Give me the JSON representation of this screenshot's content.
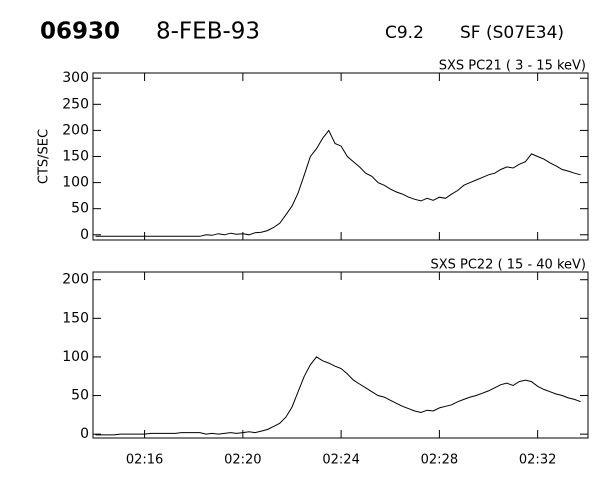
{
  "header": {
    "id": "06930",
    "date": "8-FEB-93",
    "class": "C9.2",
    "location": "SF (S07E34)"
  },
  "chart_data": [
    {
      "type": "line",
      "title": "SXS PC21  ( 3 - 15 keV)",
      "ylabel": "CTS/SEC",
      "color": "#000000",
      "x": [
        14.0,
        14.25,
        14.5,
        14.75,
        15.0,
        15.25,
        15.5,
        15.75,
        16.0,
        16.25,
        16.5,
        16.75,
        17.0,
        17.25,
        17.5,
        17.75,
        18.0,
        18.25,
        18.5,
        18.75,
        19.0,
        19.25,
        19.5,
        19.75,
        20.0,
        20.25,
        20.5,
        20.75,
        21.0,
        21.25,
        21.5,
        21.75,
        22.0,
        22.25,
        22.5,
        22.75,
        23.0,
        23.25,
        23.5,
        23.75,
        24.0,
        24.25,
        24.5,
        24.75,
        25.0,
        25.25,
        25.5,
        25.75,
        26.0,
        26.25,
        26.5,
        26.75,
        27.0,
        27.25,
        27.5,
        27.75,
        28.0,
        28.25,
        28.5,
        28.75,
        29.0,
        29.25,
        29.5,
        29.75,
        30.0,
        30.25,
        30.5,
        30.75,
        31.0,
        31.25,
        31.5,
        31.75,
        32.0,
        32.25,
        32.5,
        32.75,
        33.0,
        33.25,
        33.5,
        33.75
      ],
      "values": [
        -3,
        -3,
        -3,
        -3,
        -3,
        -3,
        -3,
        -3,
        -3,
        -3,
        -3,
        -3,
        -3,
        -3,
        -3,
        -3,
        -3,
        -3,
        0,
        -1,
        2,
        0,
        3,
        1,
        2,
        0,
        4,
        5,
        8,
        14,
        22,
        38,
        55,
        80,
        115,
        150,
        165,
        185,
        200,
        175,
        170,
        150,
        140,
        130,
        118,
        112,
        100,
        95,
        88,
        82,
        78,
        72,
        68,
        65,
        70,
        66,
        72,
        70,
        78,
        85,
        95,
        100,
        105,
        110,
        115,
        118,
        125,
        130,
        128,
        135,
        140,
        155,
        150,
        145,
        138,
        132,
        125,
        122,
        118,
        115
      ],
      "xlim": [
        13.9,
        34.05
      ],
      "ylim": [
        -10,
        310
      ],
      "yticks": [
        0,
        50,
        100,
        150,
        200,
        250,
        300
      ]
    },
    {
      "type": "line",
      "title": "SXS PC22  ( 15 - 40 keV)",
      "color": "#000000",
      "x": [
        14.0,
        14.25,
        14.5,
        14.75,
        15.0,
        15.25,
        15.5,
        15.75,
        16.0,
        16.25,
        16.5,
        16.75,
        17.0,
        17.25,
        17.5,
        17.75,
        18.0,
        18.25,
        18.5,
        18.75,
        19.0,
        19.25,
        19.5,
        19.75,
        20.0,
        20.25,
        20.5,
        20.75,
        21.0,
        21.25,
        21.5,
        21.75,
        22.0,
        22.25,
        22.5,
        22.75,
        23.0,
        23.25,
        23.5,
        23.75,
        24.0,
        24.25,
        24.5,
        24.75,
        25.0,
        25.25,
        25.5,
        25.75,
        26.0,
        26.25,
        26.5,
        26.75,
        27.0,
        27.25,
        27.5,
        27.75,
        28.0,
        28.25,
        28.5,
        28.75,
        29.0,
        29.25,
        29.5,
        29.75,
        30.0,
        30.25,
        30.5,
        30.75,
        31.0,
        31.25,
        31.5,
        31.75,
        32.0,
        32.25,
        32.5,
        32.75,
        33.0,
        33.25,
        33.5,
        33.75
      ],
      "values": [
        -1,
        -1,
        -1,
        -1,
        0,
        0,
        0,
        0,
        0,
        1,
        1,
        1,
        1,
        1,
        2,
        2,
        2,
        2,
        0,
        1,
        0,
        1,
        2,
        1,
        2,
        3,
        2,
        4,
        6,
        10,
        14,
        22,
        35,
        55,
        75,
        90,
        100,
        95,
        92,
        88,
        85,
        78,
        70,
        65,
        60,
        55,
        50,
        48,
        44,
        40,
        36,
        33,
        30,
        28,
        31,
        30,
        34,
        36,
        38,
        42,
        45,
        48,
        50,
        53,
        56,
        60,
        64,
        66,
        63,
        68,
        70,
        68,
        62,
        58,
        55,
        52,
        50,
        47,
        45,
        42
      ],
      "xlim": [
        13.9,
        34.05
      ],
      "ylim": [
        -5,
        210
      ],
      "yticks": [
        0,
        50,
        100,
        150,
        200
      ],
      "xticks": [
        {
          "value": 16,
          "label": "02:16"
        },
        {
          "value": 20,
          "label": "02:20"
        },
        {
          "value": 24,
          "label": "02:24"
        },
        {
          "value": 28,
          "label": "02:28"
        },
        {
          "value": 32,
          "label": "02:32"
        }
      ]
    }
  ]
}
